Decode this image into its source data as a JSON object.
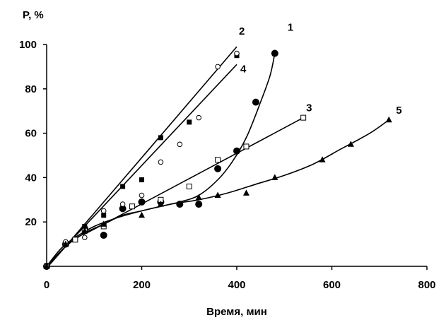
{
  "chart_data": {
    "type": "scatter",
    "ylabel": "P, %",
    "xlabel": "Время, мин",
    "xlim": [
      0,
      800
    ],
    "ylim": [
      0,
      100
    ],
    "xticks": [
      0,
      200,
      400,
      600,
      800
    ],
    "yticks": [
      20,
      40,
      60,
      80,
      100
    ],
    "grid": false,
    "series": [
      {
        "name": "1",
        "marker": "filled-circle",
        "points": [
          [
            0,
            0
          ],
          [
            40,
            10
          ],
          [
            80,
            17
          ],
          [
            120,
            14
          ],
          [
            160,
            26
          ],
          [
            200,
            29
          ],
          [
            240,
            29
          ],
          [
            280,
            28
          ],
          [
            320,
            28
          ],
          [
            360,
            44
          ],
          [
            400,
            52
          ],
          [
            440,
            74
          ],
          [
            480,
            96
          ]
        ],
        "curve": [
          [
            0,
            0
          ],
          [
            30,
            8
          ],
          [
            60,
            13
          ],
          [
            100,
            18
          ],
          [
            150,
            22
          ],
          [
            200,
            25
          ],
          [
            240,
            27
          ],
          [
            280,
            29
          ],
          [
            320,
            32
          ],
          [
            360,
            39
          ],
          [
            390,
            47
          ],
          [
            420,
            58
          ],
          [
            450,
            74
          ],
          [
            470,
            86
          ],
          [
            480,
            96
          ]
        ]
      },
      {
        "name": "2",
        "marker": "filled-square",
        "points": [
          [
            0,
            0
          ],
          [
            40,
            10
          ],
          [
            80,
            18
          ],
          [
            120,
            23
          ],
          [
            160,
            36
          ],
          [
            200,
            39
          ],
          [
            240,
            58
          ],
          [
            300,
            65
          ],
          [
            400,
            95
          ]
        ],
        "curve": [
          [
            0,
            0
          ],
          [
            40,
            9
          ],
          [
            400,
            99
          ]
        ]
      },
      {
        "name": "3",
        "marker": "open-square",
        "points": [
          [
            0,
            0
          ],
          [
            40,
            10
          ],
          [
            60,
            12
          ],
          [
            80,
            16
          ],
          [
            120,
            18
          ],
          [
            180,
            27
          ],
          [
            240,
            30
          ],
          [
            300,
            36
          ],
          [
            360,
            48
          ],
          [
            420,
            54
          ],
          [
            540,
            67
          ]
        ],
        "curve": [
          [
            0,
            0
          ],
          [
            40,
            9
          ],
          [
            80,
            15
          ],
          [
            120,
            19
          ],
          [
            540,
            67
          ]
        ]
      },
      {
        "name": "4",
        "marker": "open-circle",
        "points": [
          [
            0,
            0
          ],
          [
            40,
            11
          ],
          [
            80,
            13
          ],
          [
            120,
            25
          ],
          [
            160,
            28
          ],
          [
            200,
            32
          ],
          [
            240,
            47
          ],
          [
            280,
            55
          ],
          [
            320,
            67
          ],
          [
            360,
            90
          ],
          [
            400,
            96
          ]
        ],
        "curve": [
          [
            0,
            0
          ],
          [
            40,
            9
          ],
          [
            400,
            91
          ]
        ]
      },
      {
        "name": "5",
        "marker": "filled-triangle",
        "points": [
          [
            0,
            0
          ],
          [
            40,
            10
          ],
          [
            80,
            16
          ],
          [
            120,
            19
          ],
          [
            200,
            23
          ],
          [
            240,
            28
          ],
          [
            320,
            31
          ],
          [
            360,
            32
          ],
          [
            420,
            33
          ],
          [
            480,
            40
          ],
          [
            580,
            48
          ],
          [
            640,
            55
          ],
          [
            720,
            66
          ]
        ],
        "curve": [
          [
            0,
            0
          ],
          [
            40,
            9
          ],
          [
            80,
            15
          ],
          [
            120,
            19
          ],
          [
            160,
            23
          ],
          [
            200,
            25
          ],
          [
            260,
            28
          ],
          [
            320,
            30
          ],
          [
            380,
            33
          ],
          [
            440,
            37
          ],
          [
            500,
            41
          ],
          [
            560,
            46
          ],
          [
            620,
            53
          ],
          [
            680,
            60
          ],
          [
            720,
            66
          ]
        ]
      }
    ]
  }
}
